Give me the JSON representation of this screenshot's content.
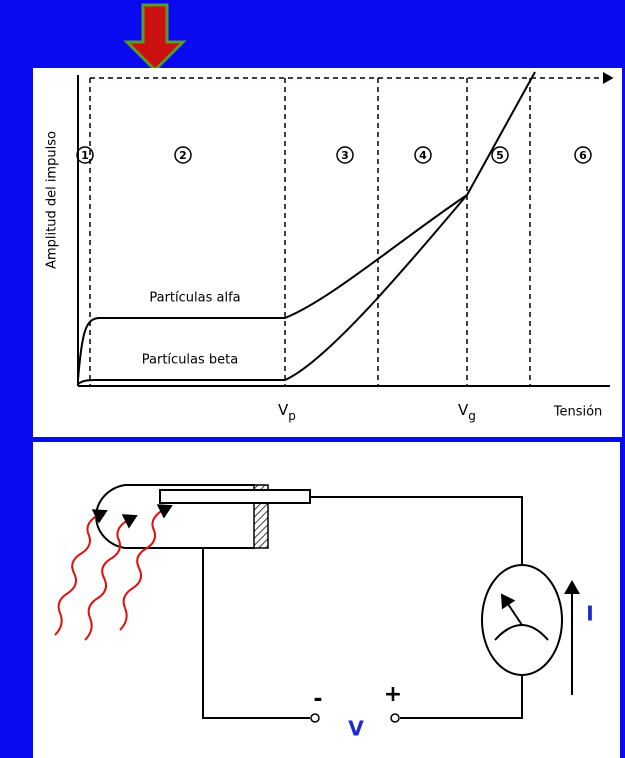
{
  "graph": {
    "y_axis_label": "Amplitud del impulso",
    "regions": [
      "1",
      "2",
      "3",
      "4",
      "5",
      "6"
    ],
    "curves": [
      "Partículas alfa",
      "Partículas beta"
    ],
    "x_labels": [
      {
        "main": "V",
        "sub": "p"
      },
      {
        "main": "V",
        "sub": "g"
      }
    ],
    "x_axis_label": "Tensión"
  },
  "circuit": {
    "minus": "-",
    "plus": "+",
    "voltage": "V",
    "current": "I"
  }
}
